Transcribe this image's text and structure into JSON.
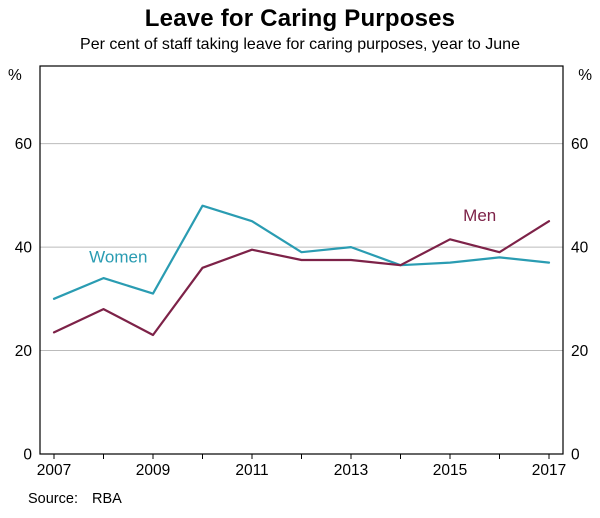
{
  "header": {
    "title": "Leave for Caring Purposes",
    "subtitle": "Per cent of staff taking leave for caring purposes, year to June"
  },
  "footer": {
    "source_label": "Source:",
    "source_value": "RBA"
  },
  "chart_data": {
    "type": "line",
    "title": "Leave for Caring Purposes",
    "subtitle": "Per cent of staff taking leave for caring purposes, year to June",
    "x": [
      2007,
      2008,
      2009,
      2010,
      2011,
      2012,
      2013,
      2014,
      2015,
      2016,
      2017
    ],
    "series": [
      {
        "name": "Women",
        "color": "#2a9cb2",
        "values": [
          30,
          34,
          31,
          48,
          45,
          39,
          40,
          36.5,
          37,
          38,
          37
        ]
      },
      {
        "name": "Men",
        "color": "#7d2248",
        "values": [
          23.5,
          28,
          23,
          36,
          39.5,
          37.5,
          37.5,
          36.5,
          41.5,
          39,
          45
        ]
      }
    ],
    "annotations": [
      {
        "text": "Women",
        "x": 2008.3,
        "y": 37,
        "series": "Women"
      },
      {
        "text": "Men",
        "x": 2015.6,
        "y": 45,
        "series": "Men"
      }
    ],
    "unit_left": "%",
    "unit_right": "%",
    "ylim": [
      0,
      75
    ],
    "yticks": [
      0,
      20,
      40,
      60
    ],
    "xticks": [
      2007,
      2009,
      2011,
      2013,
      2015,
      2017
    ],
    "grid": "horizontal",
    "legend_position": "inline-labels",
    "frame": "box",
    "grid_color": "#bbbbbb",
    "axis_color": "#000000",
    "source": "Source: RBA"
  }
}
